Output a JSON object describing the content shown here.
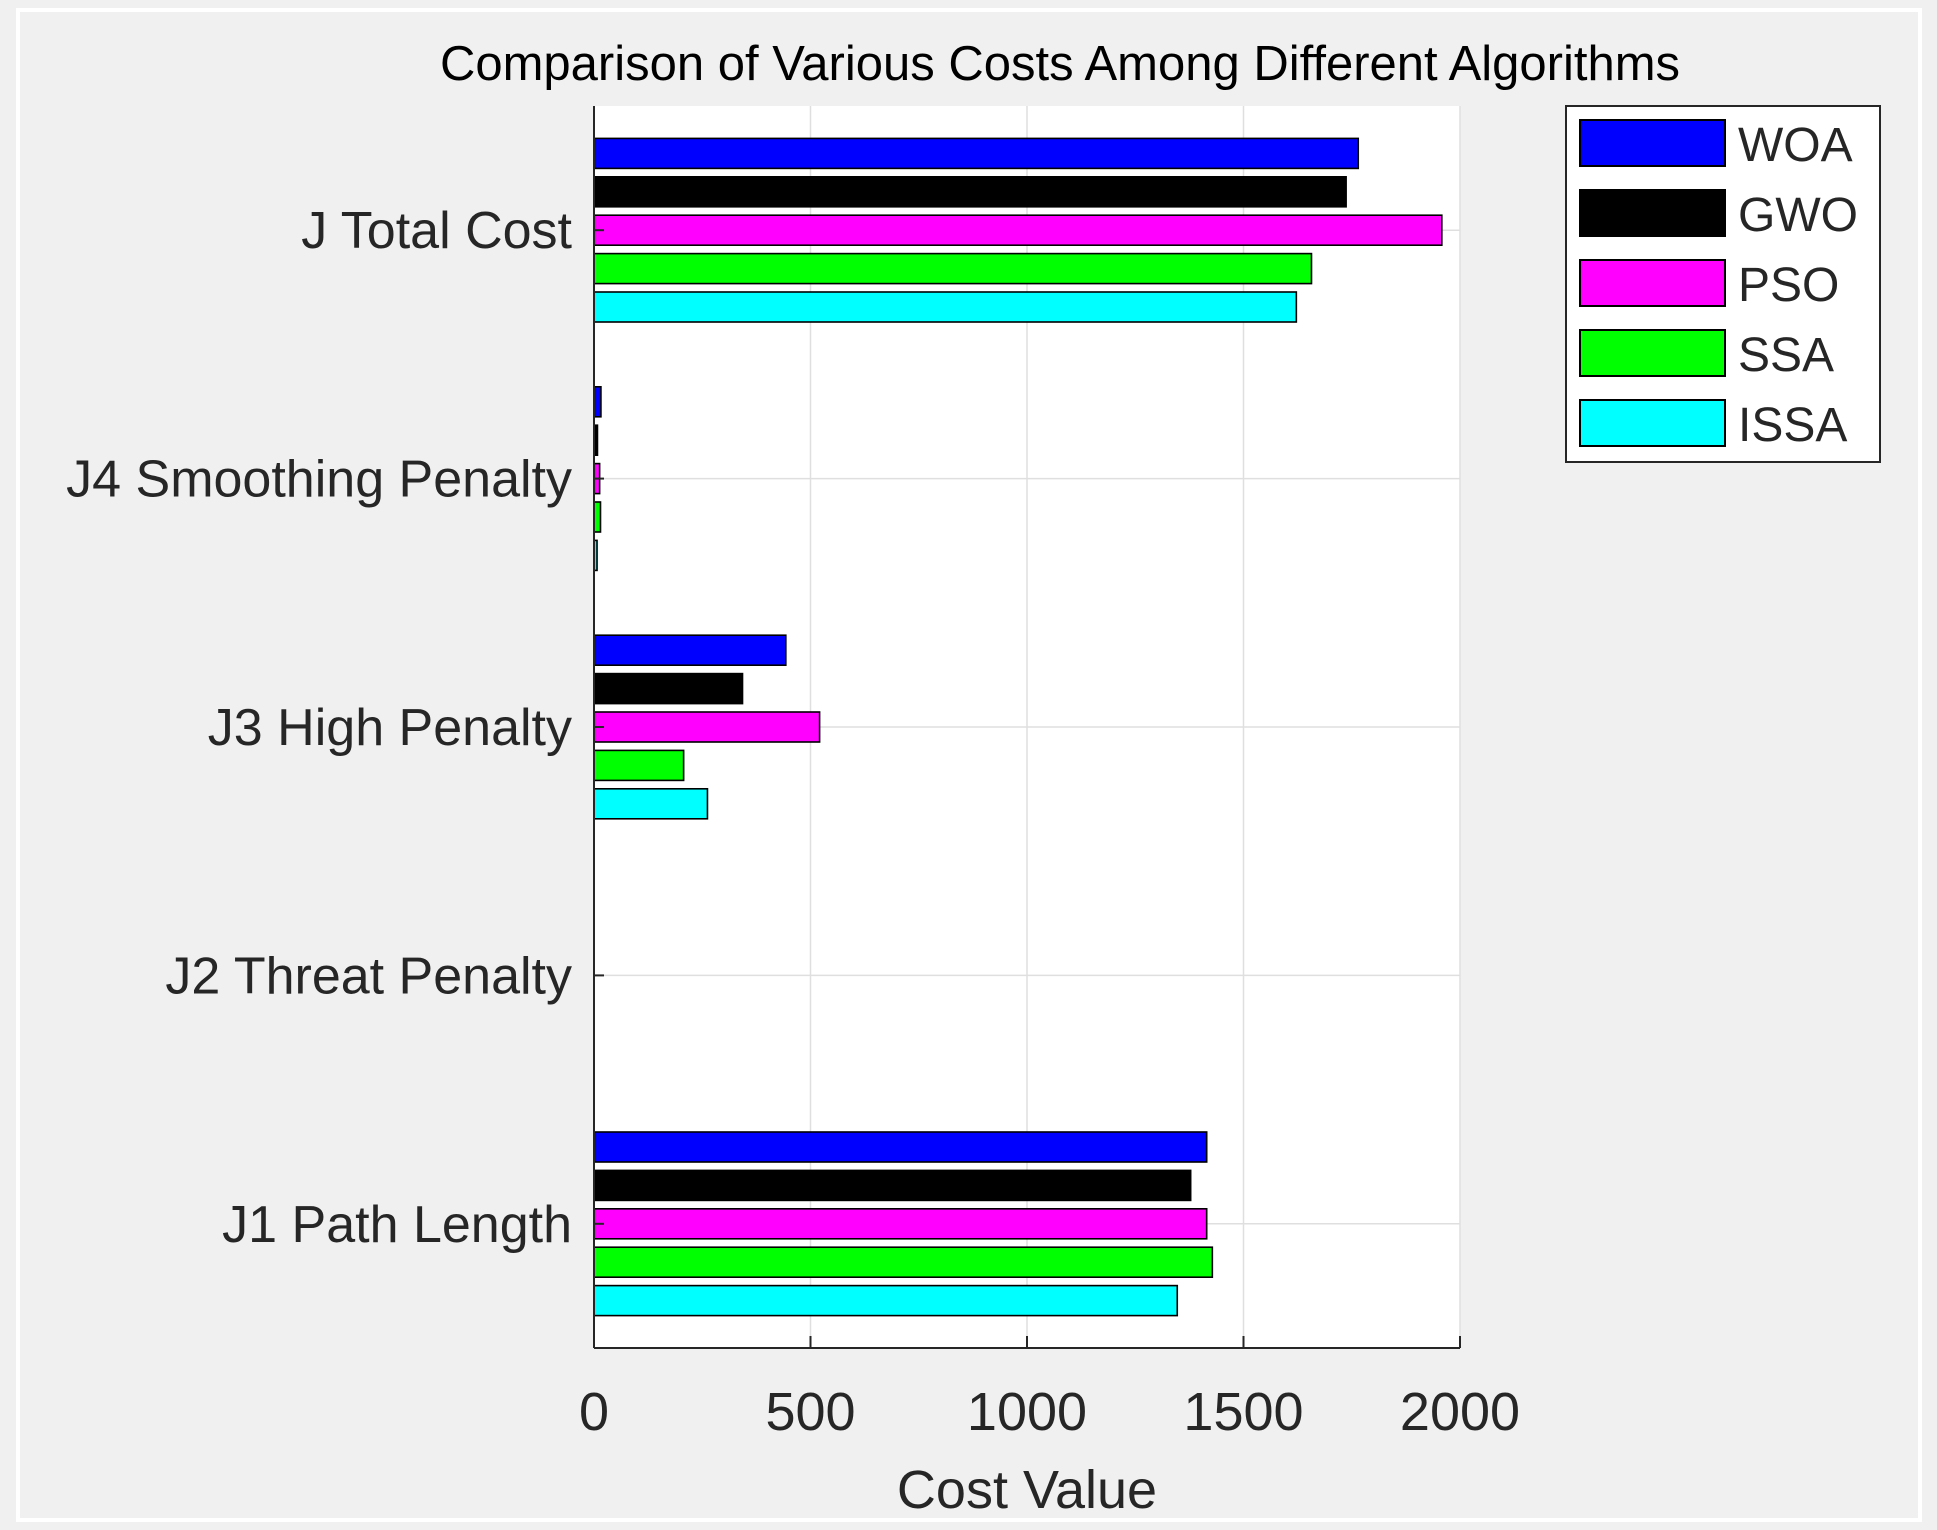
{
  "chart_data": {
    "type": "bar",
    "orientation": "horizontal",
    "title": "Comparison of Various Costs Among Different Algorithms",
    "xlabel": "Cost Value",
    "ylabel": "",
    "xlim": [
      0,
      2000
    ],
    "xticks": [
      0,
      500,
      1000,
      1500,
      2000
    ],
    "grid": true,
    "legend_position": "top-right",
    "categories": [
      "J Total Cost",
      "J4 Smoothing Penalty",
      "J3 High Penalty",
      "J2 Threat Penalty",
      "J1 Path Length"
    ],
    "series": [
      {
        "name": "WOA",
        "color": "#0000ff",
        "values": [
          1765,
          16,
          443,
          0,
          1415
        ]
      },
      {
        "name": "GWO",
        "color": "#000000",
        "values": [
          1737,
          8,
          343,
          0,
          1378
        ]
      },
      {
        "name": "PSO",
        "color": "#ff00ff",
        "values": [
          1958,
          13,
          521,
          0,
          1415
        ]
      },
      {
        "name": "SSA",
        "color": "#00ff00",
        "values": [
          1657,
          15,
          207,
          0,
          1428
        ]
      },
      {
        "name": "ISSA",
        "color": "#00ffff",
        "values": [
          1622,
          7,
          262,
          0,
          1347
        ]
      }
    ]
  },
  "colors": {
    "figure_bg": "#f0f0f0",
    "axes_bg": "#ffffff",
    "grid": "#dfdfdf",
    "axis": "#262626"
  }
}
